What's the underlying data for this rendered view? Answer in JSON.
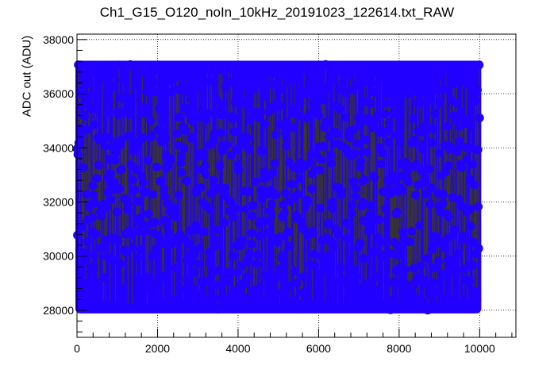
{
  "chart_data": {
    "type": "scatter",
    "title": "Ch1_G15_O120_noIn_10kHz_20191023_122614.txt_RAW",
    "xlabel": "",
    "ylabel": "ADC out (ADU)",
    "xlim": [
      0,
      10900
    ],
    "ylim": [
      27000,
      38200
    ],
    "x_ticks": [
      0,
      2000,
      4000,
      6000,
      8000,
      10000
    ],
    "x_tick_labels": [
      "0",
      "2000",
      "4000",
      "6000",
      "8000",
      "10000"
    ],
    "y_ticks": [
      28000,
      30000,
      32000,
      34000,
      36000,
      38000
    ],
    "y_tick_labels": [
      "28000",
      "30000",
      "32000",
      "34000",
      "36000",
      "38000"
    ],
    "grid": true,
    "series": [
      {
        "marker_color": "#2200ff",
        "line_color": "#3a3a1a",
        "x_range": [
          0,
          10000
        ],
        "y_range": [
          28000,
          37100
        ]
      }
    ]
  }
}
